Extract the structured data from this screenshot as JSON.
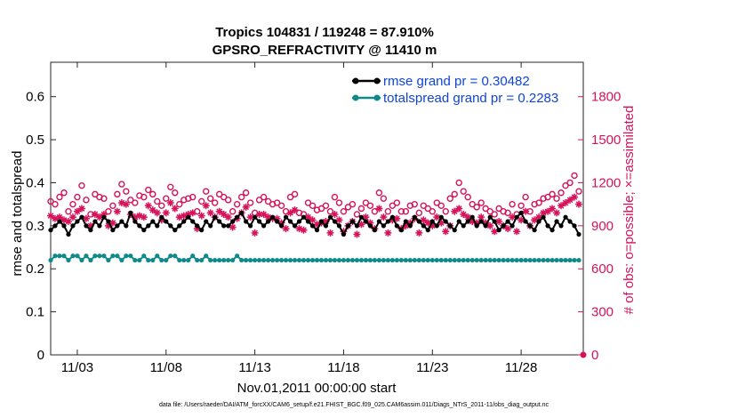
{
  "chart_data": {
    "type": "line",
    "title_line1": "Tropics 104831 / 119248 = 87.910%",
    "title_line2": "GPSRO_REFRACTIVITY @ 11410 m",
    "xlabel": "Nov.01,2011 00:00:00 start",
    "ylabel_left": "rmse and totalspread",
    "ylabel_right": "# of obs: o=possible; ×=assimilated",
    "x_range_days": [
      0.5,
      30.5
    ],
    "ylim_left": [
      0,
      0.68
    ],
    "ylim_right": [
      0,
      2040
    ],
    "x_ticks": [
      {
        "day": 2,
        "label": "11/03"
      },
      {
        "day": 7,
        "label": "11/08"
      },
      {
        "day": 12,
        "label": "11/13"
      },
      {
        "day": 17,
        "label": "11/18"
      },
      {
        "day": 22,
        "label": "11/23"
      },
      {
        "day": 27,
        "label": "11/28"
      }
    ],
    "y_ticks_left": [
      "0",
      "0.1",
      "0.2",
      "0.3",
      "0.4",
      "0.5",
      "0.6"
    ],
    "y_ticks_right": [
      "0",
      "300",
      "600",
      "900",
      "1200",
      "1500",
      "1800"
    ],
    "legend": [
      {
        "label": "rmse grand pr = 0.30482",
        "color": "#000000"
      },
      {
        "label": "totalspread grand pr = 0.2283",
        "color": "#0e8a8a"
      }
    ],
    "colors": {
      "rmse": "#000000",
      "spread": "#0e8a8a",
      "obs": "#d6125a",
      "legend_text": "#0f45d6"
    },
    "series": [
      {
        "name": "rmse",
        "x_start": 0.5,
        "x_step": 0.25,
        "values": [
          0.29,
          0.3,
          0.31,
          0.3,
          0.28,
          0.3,
          0.31,
          0.32,
          0.3,
          0.29,
          0.31,
          0.3,
          0.32,
          0.31,
          0.29,
          0.3,
          0.31,
          0.3,
          0.33,
          0.31,
          0.3,
          0.29,
          0.3,
          0.31,
          0.3,
          0.32,
          0.31,
          0.3,
          0.29,
          0.3,
          0.31,
          0.32,
          0.31,
          0.3,
          0.29,
          0.31,
          0.3,
          0.32,
          0.31,
          0.3,
          0.3,
          0.31,
          0.32,
          0.33,
          0.31,
          0.3,
          0.32,
          0.31,
          0.3,
          0.31,
          0.32,
          0.31,
          0.3,
          0.32,
          0.31,
          0.3,
          0.31,
          0.32,
          0.31,
          0.3,
          0.29,
          0.31,
          0.3,
          0.32,
          0.31,
          0.3,
          0.28,
          0.3,
          0.31,
          0.3,
          0.32,
          0.31,
          0.3,
          0.29,
          0.31,
          0.3,
          0.31,
          0.32,
          0.3,
          0.29,
          0.31,
          0.3,
          0.32,
          0.31,
          0.3,
          0.29,
          0.31,
          0.3,
          0.32,
          0.31,
          0.3,
          0.29,
          0.31,
          0.3,
          0.31,
          0.32,
          0.3,
          0.31,
          0.3,
          0.32,
          0.31,
          0.29,
          0.3,
          0.31,
          0.3,
          0.32,
          0.33,
          0.31,
          0.3,
          0.29,
          0.31,
          0.32,
          0.3,
          0.29,
          0.31,
          0.3,
          0.32,
          0.31,
          0.3,
          0.28
        ]
      },
      {
        "name": "totalspread",
        "x_start": 0.5,
        "x_step": 0.25,
        "values": [
          0.22,
          0.23,
          0.23,
          0.23,
          0.22,
          0.23,
          0.23,
          0.22,
          0.23,
          0.22,
          0.23,
          0.23,
          0.23,
          0.22,
          0.23,
          0.23,
          0.22,
          0.23,
          0.23,
          0.22,
          0.22,
          0.23,
          0.22,
          0.22,
          0.23,
          0.22,
          0.22,
          0.23,
          0.23,
          0.22,
          0.22,
          0.22,
          0.23,
          0.22,
          0.22,
          0.23,
          0.22,
          0.22,
          0.22,
          0.22,
          0.22,
          0.22,
          0.23,
          0.22,
          0.22,
          0.22,
          0.22,
          0.22,
          0.22,
          0.22,
          0.22,
          0.22,
          0.22,
          0.22,
          0.22,
          0.22,
          0.22,
          0.22,
          0.22,
          0.22,
          0.22,
          0.22,
          0.22,
          0.22,
          0.22,
          0.22,
          0.22,
          0.22,
          0.22,
          0.22,
          0.22,
          0.22,
          0.22,
          0.22,
          0.22,
          0.22,
          0.22,
          0.22,
          0.22,
          0.22,
          0.22,
          0.22,
          0.22,
          0.22,
          0.22,
          0.22,
          0.22,
          0.22,
          0.22,
          0.22,
          0.22,
          0.22,
          0.22,
          0.22,
          0.22,
          0.22,
          0.22,
          0.22,
          0.22,
          0.22,
          0.22,
          0.22,
          0.22,
          0.22,
          0.22,
          0.22,
          0.22,
          0.22,
          0.22,
          0.22,
          0.22,
          0.22,
          0.22,
          0.22,
          0.22,
          0.22,
          0.22,
          0.22,
          0.22,
          0.22
        ]
      },
      {
        "name": "possible obs (o)",
        "x_start": 0.5,
        "x_step": 0.25,
        "axis": "right",
        "values": [
          1070,
          1050,
          1100,
          1130,
          1000,
          1050,
          1100,
          1180,
          1080,
          980,
          1120,
          1100,
          1090,
          1000,
          1040,
          1120,
          1190,
          1140,
          1080,
          1060,
          1110,
          1100,
          1150,
          1120,
          1070,
          1040,
          1090,
          1170,
          1130,
          1050,
          1080,
          1090,
          1100,
          1000,
          1070,
          1140,
          1090,
          1060,
          1120,
          1100,
          1080,
          1000,
          1050,
          1100,
          1130,
          1060,
          990,
          1080,
          1100,
          1070,
          1050,
          1060,
          1040,
          1000,
          1100,
          1120,
          990,
          980,
          1060,
          1040,
          1010,
          1020,
          1040,
          1000,
          1100,
          1060,
          1000,
          1030,
          1050,
          980,
          1020,
          1060,
          1040,
          1000,
          1130,
          1090,
          1000,
          1040,
          1060,
          1000,
          1000,
          1040,
          1050,
          990,
          1040,
          1020,
          1000,
          1060,
          1040,
          1000,
          1090,
          1120,
          1200,
          1140,
          1100,
          1050,
          1030,
          1060,
          1020,
          1000,
          980,
          1020,
          1000,
          990,
          1050,
          980,
          1040,
          1100,
          1000,
          1050,
          1060,
          1090,
          1100,
          1120,
          1090,
          1130,
          1180,
          1200,
          1250,
          1140
        ]
      },
      {
        "name": "assimilated obs (×)",
        "x_start": 0.5,
        "x_step": 0.25,
        "axis": "right",
        "values": [
          970,
          950,
          960,
          940,
          930,
          960,
          1000,
          1020,
          950,
          900,
          980,
          960,
          980,
          900,
          920,
          1000,
          1060,
          1050,
          980,
          960,
          970,
          960,
          1040,
          1010,
          990,
          940,
          990,
          1060,
          1020,
          960,
          970,
          980,
          990,
          880,
          970,
          1040,
          990,
          960,
          1000,
          980,
          960,
          890,
          950,
          990,
          1030,
          960,
          850,
          980,
          980,
          960,
          950,
          950,
          920,
          880,
          990,
          1010,
          880,
          870,
          960,
          940,
          910,
          920,
          930,
          850,
          980,
          940,
          860,
          900,
          930,
          840,
          910,
          960,
          920,
          880,
          1020,
          960,
          850,
          940,
          950,
          880,
          900,
          920,
          950,
          850,
          940,
          920,
          900,
          960,
          920,
          860,
          900,
          1000,
          1020,
          980,
          960,
          930,
          920,
          960,
          920,
          900,
          860,
          930,
          900,
          880,
          960,
          860,
          940,
          1000,
          900,
          940,
          960,
          990,
          1000,
          1020,
          990,
          1040,
          1060,
          1080,
          1100,
          1050
        ]
      }
    ]
  },
  "footer": "data file: /Users/raeder/DAI/ATM_forcXX/CAM6_setup/f.e21.FHIST_BGC.f09_025.CAM6assim.011/Diags_NTrS_2011-11/obs_diag_output.nc"
}
